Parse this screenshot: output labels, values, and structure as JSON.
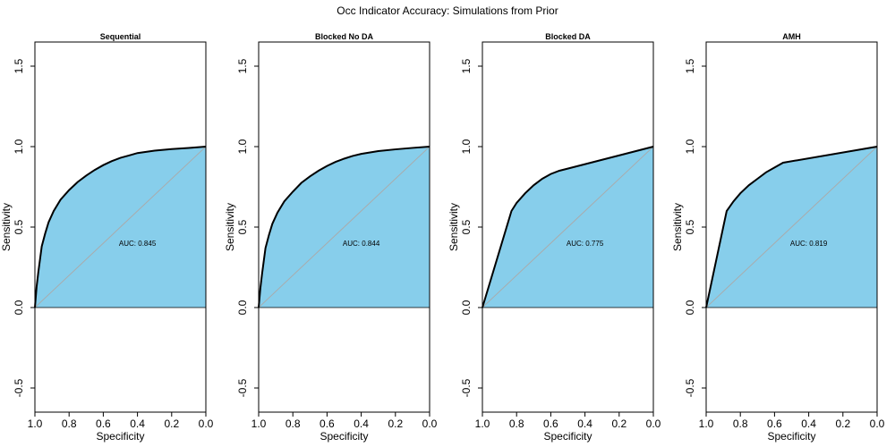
{
  "figure_title": "Occ Indicator Accuracy: Simulations from Prior",
  "colors": {
    "fill": "#87CEEB",
    "curve": "#000000",
    "diagonal": "#AAAAAA",
    "frame": "#000000"
  },
  "chart_data": [
    {
      "type": "area",
      "title": "Sequential",
      "xlabel": "Specificity",
      "ylabel": "Sensitivity",
      "x_reversed": true,
      "xlim": [
        1.0,
        0.0
      ],
      "ylim": [
        -0.65,
        1.65
      ],
      "x_ticks": [
        "1.0",
        "0.8",
        "0.6",
        "0.4",
        "0.2",
        "0.0"
      ],
      "y_ticks": [
        "-0.5",
        "0.0",
        "0.5",
        "1.0",
        "1.5"
      ],
      "auc_label": "AUC: 0.845",
      "x": [
        1.0,
        0.99,
        0.98,
        0.97,
        0.96,
        0.94,
        0.92,
        0.89,
        0.85,
        0.8,
        0.75,
        0.7,
        0.65,
        0.6,
        0.55,
        0.5,
        0.45,
        0.4,
        0.3,
        0.2,
        0.1,
        0.0
      ],
      "y": [
        0.0,
        0.13,
        0.22,
        0.3,
        0.38,
        0.46,
        0.53,
        0.6,
        0.67,
        0.73,
        0.78,
        0.82,
        0.855,
        0.885,
        0.91,
        0.93,
        0.945,
        0.96,
        0.975,
        0.985,
        0.992,
        1.0
      ]
    },
    {
      "type": "area",
      "title": "Blocked No DA",
      "xlabel": "Specificity",
      "ylabel": "Sensitivity",
      "x_reversed": true,
      "xlim": [
        1.0,
        0.0
      ],
      "ylim": [
        -0.65,
        1.65
      ],
      "x_ticks": [
        "1.0",
        "0.8",
        "0.6",
        "0.4",
        "0.2",
        "0.0"
      ],
      "y_ticks": [
        "-0.5",
        "0.0",
        "0.5",
        "1.0",
        "1.5"
      ],
      "auc_label": "AUC: 0.844",
      "x": [
        1.0,
        0.99,
        0.98,
        0.97,
        0.96,
        0.94,
        0.92,
        0.89,
        0.85,
        0.8,
        0.75,
        0.7,
        0.65,
        0.6,
        0.55,
        0.5,
        0.45,
        0.4,
        0.3,
        0.2,
        0.1,
        0.0
      ],
      "y": [
        0.0,
        0.12,
        0.21,
        0.29,
        0.37,
        0.45,
        0.52,
        0.59,
        0.66,
        0.72,
        0.775,
        0.815,
        0.85,
        0.88,
        0.905,
        0.925,
        0.942,
        0.955,
        0.972,
        0.983,
        0.992,
        1.0
      ]
    },
    {
      "type": "area",
      "title": "Blocked DA",
      "xlabel": "Specificity",
      "ylabel": "Sensitivity",
      "x_reversed": true,
      "xlim": [
        1.0,
        0.0
      ],
      "ylim": [
        -0.65,
        1.65
      ],
      "x_ticks": [
        "1.0",
        "0.8",
        "0.6",
        "0.4",
        "0.2",
        "0.0"
      ],
      "y_ticks": [
        "-0.5",
        "0.0",
        "0.5",
        "1.0",
        "1.5"
      ],
      "auc_label": "AUC: 0.775",
      "x": [
        1.0,
        0.83,
        0.8,
        0.75,
        0.7,
        0.65,
        0.6,
        0.55,
        0.0
      ],
      "y": [
        0.0,
        0.6,
        0.65,
        0.71,
        0.76,
        0.8,
        0.83,
        0.85,
        1.0
      ]
    },
    {
      "type": "area",
      "title": "AMH",
      "xlabel": "Specificity",
      "ylabel": "Sensitivity",
      "x_reversed": true,
      "xlim": [
        1.0,
        0.0
      ],
      "ylim": [
        -0.65,
        1.65
      ],
      "x_ticks": [
        "1.0",
        "0.8",
        "0.6",
        "0.4",
        "0.2",
        "0.0"
      ],
      "y_ticks": [
        "-0.5",
        "0.0",
        "0.5",
        "1.0",
        "1.5"
      ],
      "auc_label": "AUC: 0.819",
      "x": [
        1.0,
        0.88,
        0.84,
        0.8,
        0.75,
        0.7,
        0.65,
        0.6,
        0.55,
        0.0
      ],
      "y": [
        0.0,
        0.6,
        0.66,
        0.71,
        0.76,
        0.8,
        0.84,
        0.87,
        0.9,
        1.0
      ]
    }
  ]
}
